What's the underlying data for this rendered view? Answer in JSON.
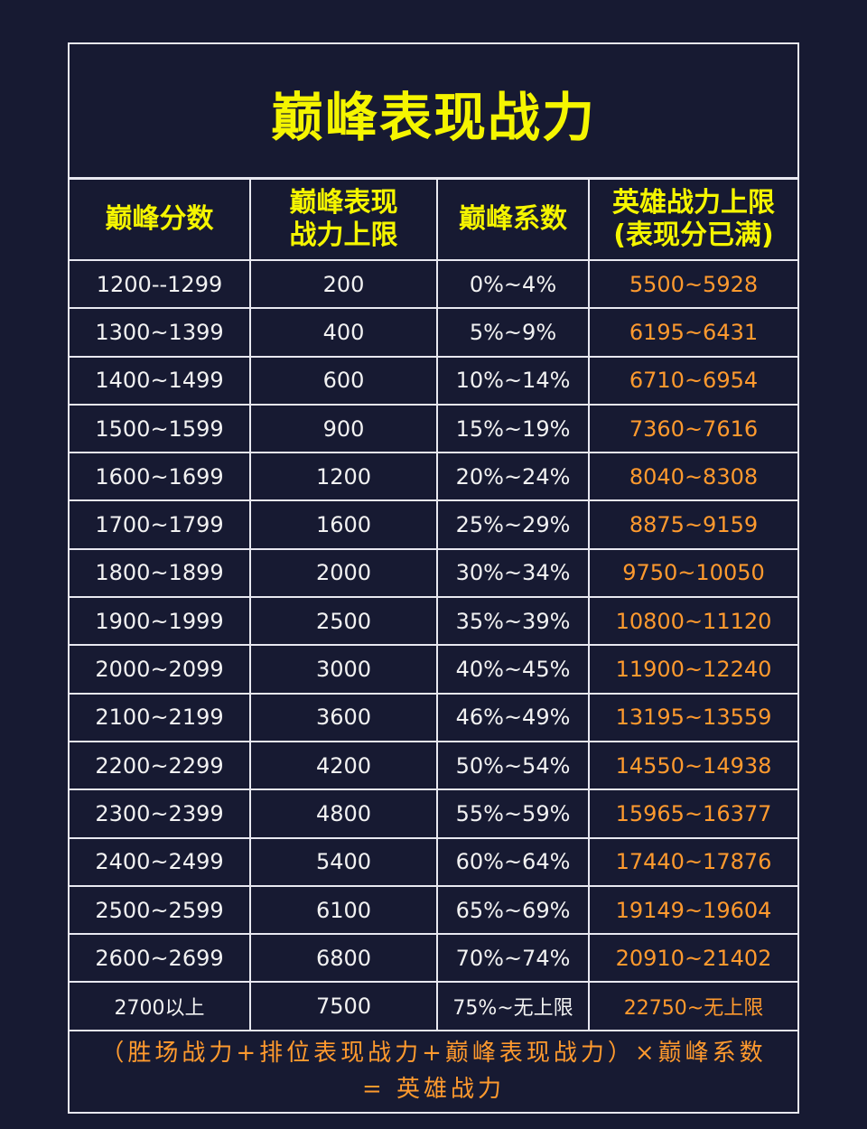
{
  "title": "巅峰表现战力",
  "headers": {
    "col1": "巅峰分数",
    "col2_line1": "巅峰表现",
    "col2_line2": "战力上限",
    "col3": "巅峰系数",
    "col4_line1": "英雄战力上限",
    "col4_line2": "(表现分已满)"
  },
  "rows": [
    {
      "score": "1200--1299",
      "limit": "200",
      "coef": "0%~4%",
      "power": "5500~5928"
    },
    {
      "score": "1300~1399",
      "limit": "400",
      "coef": "5%~9%",
      "power": "6195~6431"
    },
    {
      "score": "1400~1499",
      "limit": "600",
      "coef": "10%~14%",
      "power": "6710~6954"
    },
    {
      "score": "1500~1599",
      "limit": "900",
      "coef": "15%~19%",
      "power": "7360~7616"
    },
    {
      "score": "1600~1699",
      "limit": "1200",
      "coef": "20%~24%",
      "power": "8040~8308"
    },
    {
      "score": "1700~1799",
      "limit": "1600",
      "coef": "25%~29%",
      "power": "8875~9159"
    },
    {
      "score": "1800~1899",
      "limit": "2000",
      "coef": "30%~34%",
      "power": "9750~10050"
    },
    {
      "score": "1900~1999",
      "limit": "2500",
      "coef": "35%~39%",
      "power": "10800~11120"
    },
    {
      "score": "2000~2099",
      "limit": "3000",
      "coef": "40%~45%",
      "power": "11900~12240"
    },
    {
      "score": "2100~2199",
      "limit": "3600",
      "coef": "46%~49%",
      "power": "13195~13559"
    },
    {
      "score": "2200~2299",
      "limit": "4200",
      "coef": "50%~54%",
      "power": "14550~14938"
    },
    {
      "score": "2300~2399",
      "limit": "4800",
      "coef": "55%~59%",
      "power": "15965~16377"
    },
    {
      "score": "2400~2499",
      "limit": "5400",
      "coef": "60%~64%",
      "power": "17440~17876"
    },
    {
      "score": "2500~2599",
      "limit": "6100",
      "coef": "65%~69%",
      "power": "19149~19604"
    },
    {
      "score": "2600~2699",
      "limit": "6800",
      "coef": "70%~74%",
      "power": "20910~21402"
    },
    {
      "score": "2700以上",
      "limit": "7500",
      "coef": "75%~无上限",
      "power": "22750~无上限"
    }
  ],
  "formula": {
    "line1": "（胜场战力+排位表现战力+巅峰表现战力）×巅峰系数",
    "line2": "= 英雄战力"
  },
  "colors": {
    "background": "#171a32",
    "title": "#f5f500",
    "power_text": "#ff9a2e",
    "border": "#e8e8f0"
  }
}
